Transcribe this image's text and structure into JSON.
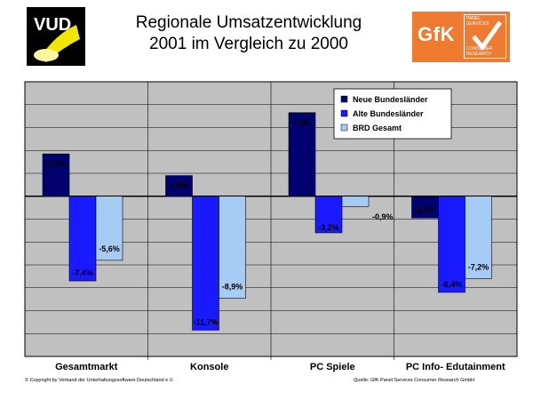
{
  "title_line1": "Regionale Umsatzentwicklung",
  "title_line2": "2001 im Vergleich zu 2000",
  "logos": {
    "left_text": "VUD",
    "right_text": "GfK",
    "right_small_lines": [
      "PANEL",
      "SERVICES",
      "CONSUMER",
      "RESEARCH"
    ]
  },
  "footer": {
    "copyright": "© Copyright by Verband der Unterhaltungssoftware Deutschland e.V.",
    "source": "Quelle: GfK Panel Services Consumer Research GmbH"
  },
  "colors": {
    "plot_background": "#c0c0c0",
    "neue": "#00006e",
    "alte": "#1a1aff",
    "brd": "#a6cbf4",
    "gfk_orange": "#ee7b30"
  },
  "chart_data": {
    "type": "bar",
    "categories": [
      "Gesamtmarkt",
      "Konsole",
      "PC Spiele",
      "PC Info- Edutainment"
    ],
    "series": [
      {
        "name": "Neue Bundesländer",
        "values": [
          3.7,
          1.8,
          7.3,
          -1.9
        ],
        "labels": [
          "3,7%",
          "1,8%",
          "7,3%",
          "-1,9%"
        ]
      },
      {
        "name": "Alte Bundesländer",
        "values": [
          -7.4,
          -11.7,
          -3.2,
          -8.4
        ],
        "labels": [
          "-7,4%",
          "-11,7%",
          "-3,2%",
          "-8,4%"
        ]
      },
      {
        "name": "BRD Gesamt",
        "values": [
          -5.6,
          -8.9,
          -0.9,
          -7.2
        ],
        "labels": [
          "-5,6%",
          "-8,9%",
          "-0,9%",
          "-7,2%"
        ]
      }
    ],
    "ylim": [
      -14,
      10
    ],
    "grid": true,
    "legend_position": "top-right"
  }
}
